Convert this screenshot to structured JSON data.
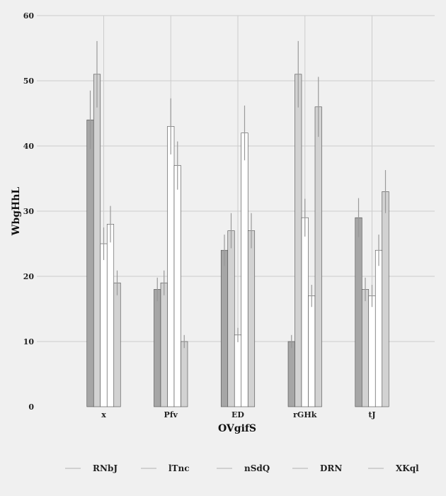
{
  "chart_data": {
    "type": "bar",
    "title": "",
    "xlabel": "OVgifS",
    "ylabel": "WbgHhL",
    "categories": [
      "x",
      "Pfv",
      "ED",
      "rGHk",
      "tJ"
    ],
    "ylim": [
      0,
      60
    ],
    "yticks": [
      0,
      10,
      20,
      30,
      40,
      50,
      60
    ],
    "grid": true,
    "legend_position": "bottom",
    "series": [
      {
        "name": "RNbJ",
        "color": "#a6a6a6",
        "values": [
          44,
          18,
          24,
          10,
          29
        ],
        "errors": [
          4.5,
          1.8,
          2.4,
          1.0,
          3.0
        ]
      },
      {
        "name": "lTnc",
        "color": "#d2d2d2",
        "values": [
          51,
          19,
          27,
          51,
          18
        ],
        "errors": [
          5.1,
          1.9,
          2.7,
          5.1,
          1.8
        ]
      },
      {
        "name": "nSdQ",
        "color": "#ffffff",
        "values": [
          25,
          43,
          11,
          29,
          17
        ],
        "errors": [
          2.5,
          4.3,
          1.1,
          2.9,
          1.7
        ]
      },
      {
        "name": "DRN",
        "color": "#ffffff",
        "values": [
          28,
          37,
          42,
          17,
          24
        ],
        "errors": [
          2.8,
          3.7,
          4.2,
          1.7,
          2.4
        ]
      },
      {
        "name": "XKql",
        "color": "#d2d2d2",
        "values": [
          19,
          10,
          27,
          46,
          33
        ],
        "errors": [
          1.9,
          1.0,
          2.7,
          4.6,
          3.3
        ]
      }
    ]
  }
}
